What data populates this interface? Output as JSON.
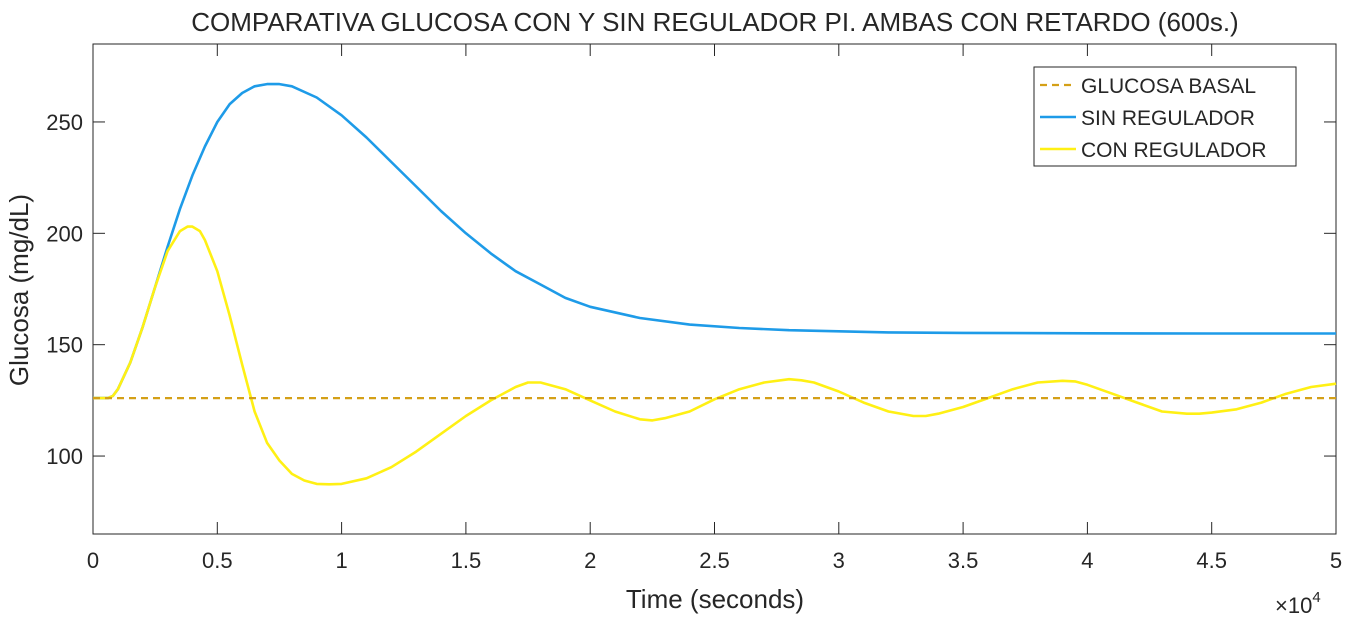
{
  "chart_data": {
    "type": "line",
    "title": "COMPARATIVA GLUCOSA CON Y SIN REGULADOR PI. AMBAS CON RETARDO (600s.)",
    "xlabel": "Time (seconds)",
    "ylabel": "Glucosa (mg/dL)",
    "x_exponent_label": "×10",
    "x_exponent_power": "4",
    "xlim": [
      0,
      50000
    ],
    "ylim": [
      65,
      285
    ],
    "x_ticks": [
      0,
      5000,
      10000,
      15000,
      20000,
      25000,
      30000,
      35000,
      40000,
      45000,
      50000
    ],
    "x_tick_labels": [
      "0",
      "0.5",
      "1",
      "1.5",
      "2",
      "2.5",
      "3",
      "3.5",
      "4",
      "4.5",
      "5"
    ],
    "y_ticks": [
      100,
      150,
      200,
      250
    ],
    "y_tick_labels": [
      "100",
      "150",
      "200",
      "250"
    ],
    "legend_position": "top-right",
    "grid": false,
    "series": [
      {
        "name": "GLUCOSA BASAL",
        "color": "#D4A017",
        "dash": true,
        "x": [
          0,
          50000
        ],
        "y": [
          126,
          126
        ]
      },
      {
        "name": "SIN REGULADOR",
        "color": "#1E9BE8",
        "dash": false,
        "x": [
          0,
          600,
          800,
          1000,
          1500,
          2000,
          2500,
          3000,
          3500,
          4000,
          4500,
          5000,
          5500,
          6000,
          6500,
          7000,
          7500,
          8000,
          9000,
          10000,
          11000,
          12000,
          13000,
          14000,
          15000,
          16000,
          17000,
          18000,
          19000,
          20000,
          22000,
          24000,
          26000,
          28000,
          30000,
          32000,
          35000,
          40000,
          45000,
          50000
        ],
        "y": [
          126,
          126,
          127,
          130,
          142,
          158,
          176,
          194,
          211,
          226,
          239,
          250,
          258,
          263,
          266,
          267,
          267,
          266,
          261,
          253,
          243,
          232,
          221,
          210,
          200,
          191,
          183,
          177,
          171,
          167,
          162,
          159,
          157.5,
          156.5,
          156,
          155.5,
          155.3,
          155.1,
          155,
          155
        ]
      },
      {
        "name": "CON REGULADOR",
        "color": "#FFF014",
        "dash": false,
        "x": [
          0,
          600,
          800,
          1000,
          1500,
          2000,
          2500,
          3000,
          3500,
          3800,
          4000,
          4300,
          4500,
          5000,
          5500,
          6000,
          6500,
          7000,
          7500,
          8000,
          8500,
          9000,
          9500,
          10000,
          11000,
          12000,
          13000,
          14000,
          15000,
          16000,
          17000,
          17500,
          18000,
          19000,
          20000,
          21000,
          22000,
          22500,
          23000,
          24000,
          25000,
          26000,
          27000,
          28000,
          28500,
          29000,
          30000,
          31000,
          32000,
          33000,
          33500,
          34000,
          35000,
          36000,
          37000,
          38000,
          39000,
          39500,
          40000,
          41000,
          42000,
          43000,
          44000,
          44500,
          45000,
          46000,
          47000,
          48000,
          49000,
          50000
        ],
        "y": [
          126,
          126,
          127,
          130,
          142,
          158,
          176,
          192,
          201,
          203,
          203,
          201,
          197,
          183,
          163,
          141,
          120,
          106,
          98,
          92,
          89,
          87.5,
          87.3,
          87.5,
          90,
          95,
          102,
          110,
          118,
          125,
          131,
          133,
          133,
          130,
          125,
          120,
          116.5,
          116,
          117,
          120,
          125.5,
          130,
          133,
          134.5,
          134,
          133,
          129,
          124,
          120,
          118,
          118,
          119,
          122,
          126,
          130,
          133,
          133.8,
          133.5,
          132,
          128,
          124,
          120,
          119,
          119,
          119.5,
          121,
          124,
          128,
          131,
          132.5
        ]
      }
    ]
  }
}
